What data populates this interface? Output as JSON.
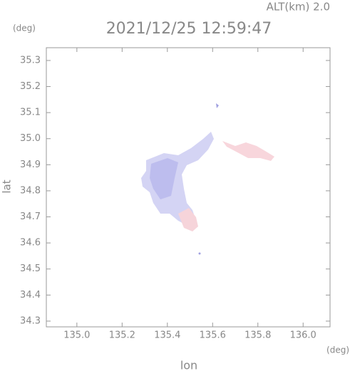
{
  "chart_data": {
    "type": "map",
    "title": "2021/12/25 12:59:47",
    "altitude_label": "ALT(km) 2.0",
    "y_unit": "(deg)",
    "x_unit": "(deg)",
    "xlabel": "lon",
    "ylabel": "lat",
    "xlim": [
      134.865,
      136.119
    ],
    "ylim": [
      34.278,
      35.349
    ],
    "xticks": [
      {
        "value": 135.0,
        "label": "135.0"
      },
      135.2,
      135.4,
      135.6,
      135.8,
      {
        "value": 136.0,
        "label": "136.0"
      }
    ],
    "yticks": [
      34.3,
      34.4,
      34.5,
      34.6,
      34.7,
      34.8,
      34.9,
      {
        "value": 35.0,
        "label": "35.0"
      },
      35.1,
      35.2,
      35.3
    ]
  }
}
